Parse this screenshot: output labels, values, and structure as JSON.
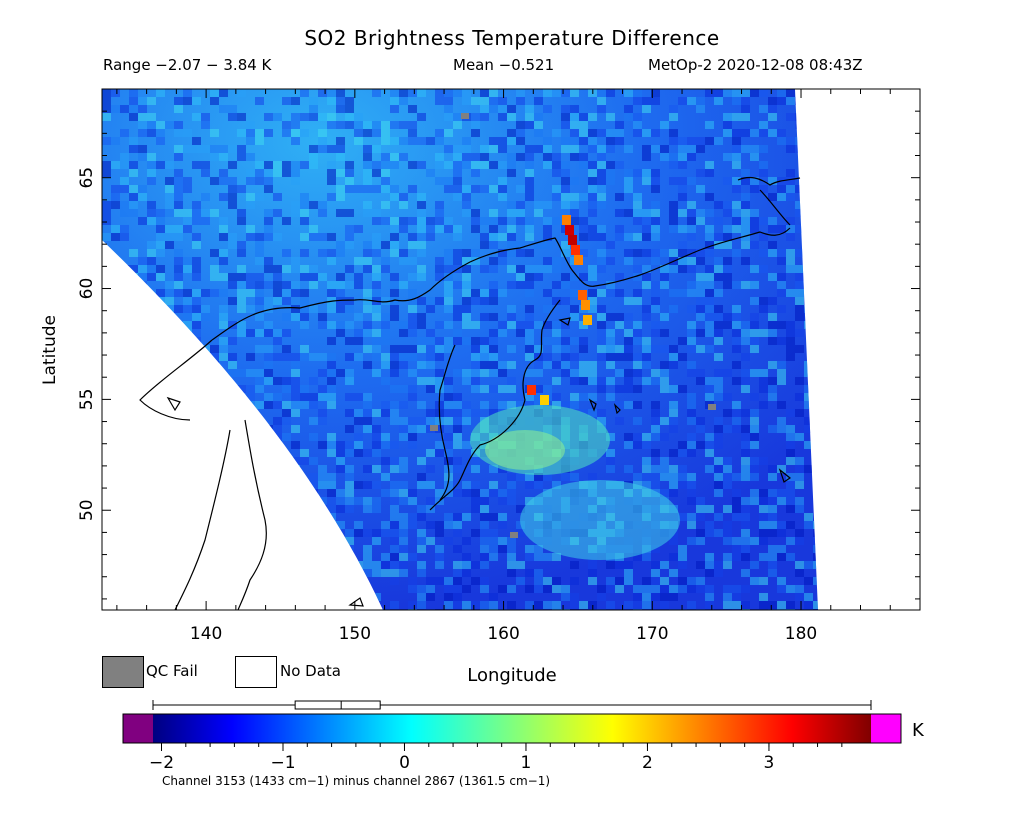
{
  "header": {
    "title": "SO2 Brightness Temperature Difference",
    "range": "Range −2.07 − 3.84 K",
    "mean": "Mean −0.521",
    "satellite_time": "MetOp-2 2020-12-08 08:43Z"
  },
  "map": {
    "xlabel": "Longitude",
    "ylabel": "Latitude",
    "x_ticks": [
      "140",
      "150",
      "160",
      "170",
      "180"
    ],
    "y_ticks": [
      "50",
      "55",
      "60",
      "65"
    ],
    "lon_range": [
      133,
      188
    ],
    "lat_range": [
      45.5,
      69
    ],
    "plume_peak_K": 3.5,
    "plume_location": {
      "lon": 164,
      "lat": 63
    }
  },
  "legend": {
    "qc_fail": "QC Fail",
    "no_data": "No Data",
    "qc_fail_color": "#808080",
    "no_data_color": "#ffffff"
  },
  "colorbar": {
    "units": "K",
    "ticks": [
      "−2",
      "−1",
      "0",
      "1",
      "2",
      "3"
    ],
    "tick_values": [
      -2,
      -1,
      0,
      1,
      2,
      3
    ],
    "range": [
      -2.07,
      3.84
    ],
    "under_color": "#800080",
    "over_color": "#ff00ff",
    "box_stats": {
      "min": -2.07,
      "q1": -0.9,
      "median": -0.521,
      "q3": -0.2,
      "max": 3.84
    }
  },
  "caption": "Channel 3153 (1433 cm−1) minus channel 2867 (1361.5 cm−1)"
}
